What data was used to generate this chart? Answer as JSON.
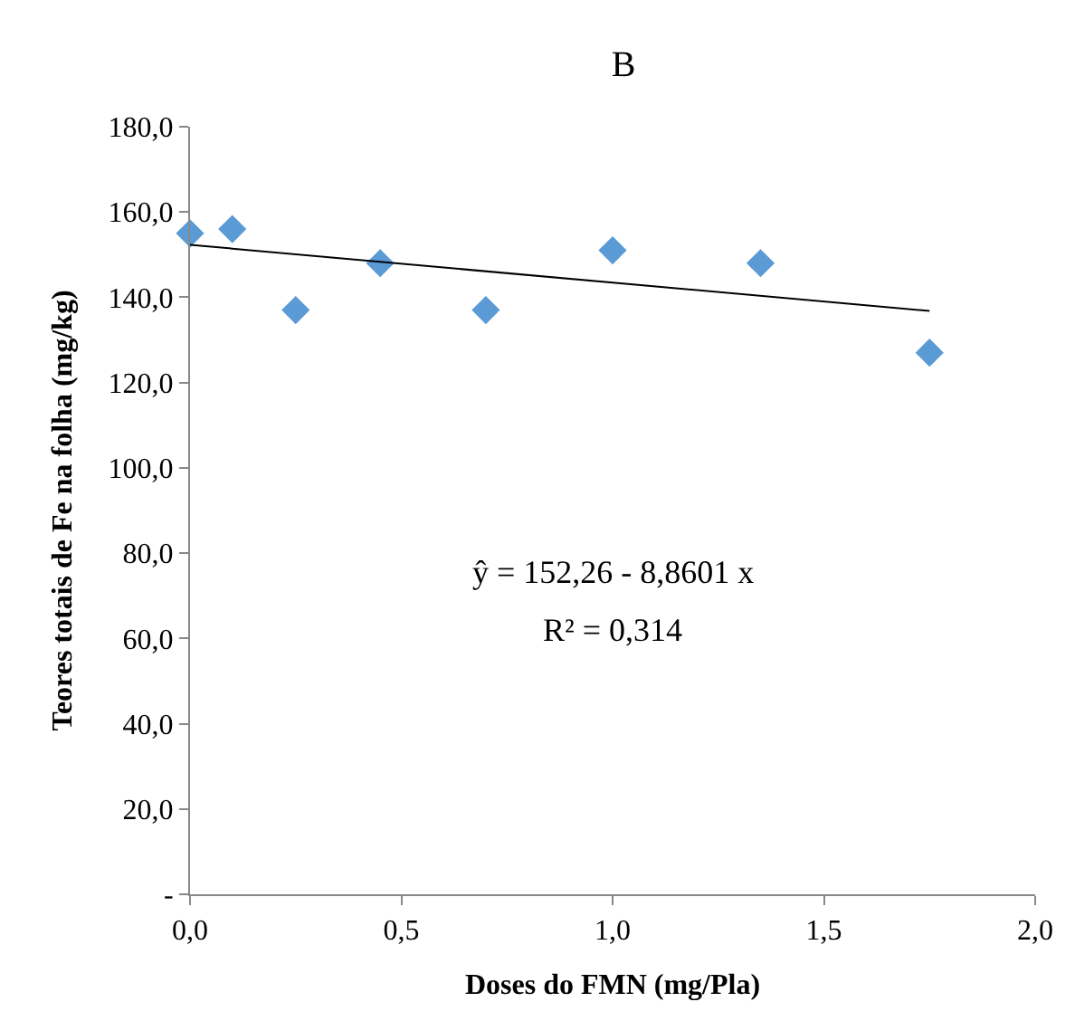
{
  "chart_data": {
    "type": "scatter",
    "title": "B",
    "xlabel": "Doses do FMN (mg/Pla)",
    "ylabel": "Teores totais de Fe na folha (mg/kg)",
    "x": [
      0,
      0.1,
      0.25,
      0.45,
      0.7,
      1.0,
      1.35,
      1.75
    ],
    "series": [
      {
        "color": "#5b9bd5",
        "marker": "diamond",
        "values": [
          155,
          156,
          137,
          148,
          137,
          151,
          148,
          127
        ]
      },
      {
        "type": "line",
        "color": "#000000",
        "marker": "none",
        "line_style": "solid",
        "x": [
          0,
          1.75
        ],
        "values": [
          152.3,
          136.8
        ]
      }
    ],
    "xlim": [
      0,
      2
    ],
    "ylim": [
      0,
      180
    ],
    "xticks": [
      {
        "value": 0,
        "label": "0,0"
      },
      {
        "value": 0.5,
        "label": "0,5"
      },
      {
        "value": 1.0,
        "label": "1,0"
      },
      {
        "value": 1.5,
        "label": "1,5"
      },
      {
        "value": 2.0,
        "label": "2,0"
      }
    ],
    "yticks": [
      {
        "value": 0,
        "label": "-"
      },
      {
        "value": 20,
        "label": "20,0"
      },
      {
        "value": 40,
        "label": "40,0"
      },
      {
        "value": 60,
        "label": "60,0"
      },
      {
        "value": 80,
        "label": "80,0"
      },
      {
        "value": 100,
        "label": "100,0"
      },
      {
        "value": 120,
        "label": "120,0"
      },
      {
        "value": 140,
        "label": "140,0"
      },
      {
        "value": 160,
        "label": "160,0"
      },
      {
        "value": 180,
        "label": "180,0"
      }
    ],
    "annotations": [
      "ŷ = 152,26 - 8,8601 x",
      "R² = 0,314"
    ]
  }
}
